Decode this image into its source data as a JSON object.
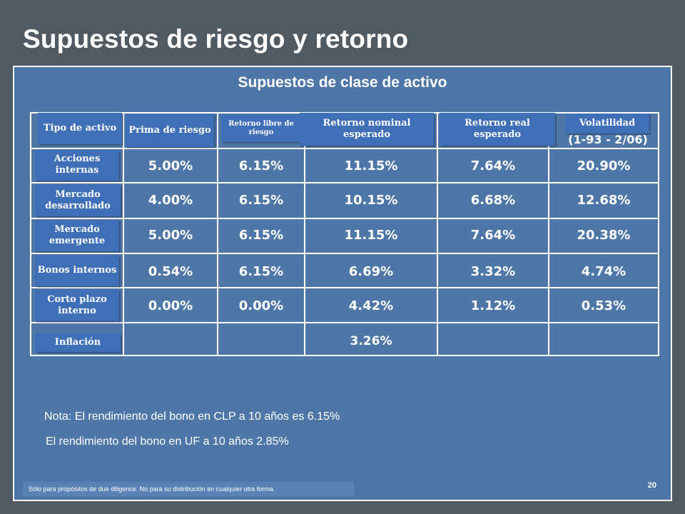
{
  "title": "Supuestos de riesgo y retorno",
  "panel_title": "Supuestos de clase de activo",
  "columns": [
    "Tipo de activo",
    "Prima de riesgo",
    "Retorno libre de riesgo",
    "Retorno nominal esperado",
    "Retorno real esperado",
    "Volatilidad"
  ],
  "volatility_period": "(1-93 - 2/06)",
  "rows": [
    {
      "label": "Acciones internas",
      "values": [
        "5.00%",
        "6.15%",
        "11.15%",
        "7.64%",
        "20.90%"
      ]
    },
    {
      "label": "Mercado desarrollado",
      "values": [
        "4.00%",
        "6.15%",
        "10.15%",
        "6.68%",
        "12.68%"
      ]
    },
    {
      "label": "Mercado emergente",
      "values": [
        "5.00%",
        "6.15%",
        "11.15%",
        "7.64%",
        "20.38%"
      ]
    },
    {
      "label": "Bonos internos",
      "values": [
        "0.54%",
        "6.15%",
        "6.69%",
        "3.32%",
        "4.74%"
      ]
    },
    {
      "label": "Corto plazo interno",
      "values": [
        "0.00%",
        "0.00%",
        "4.42%",
        "1.12%",
        "0.53%"
      ]
    },
    {
      "label": "Inflación",
      "values": [
        "",
        "",
        "3.26%",
        "",
        ""
      ]
    }
  ],
  "note1": "Nota:  El rendimiento del bono en CLP a 10 años es 6.15%",
  "note2": "El rendimiento del bono en UF a 10 años 2.85%",
  "footer": "Sólo para propósitos de due diligence.  No para su distribución en cualquier otra forma.",
  "page_number": "20"
}
